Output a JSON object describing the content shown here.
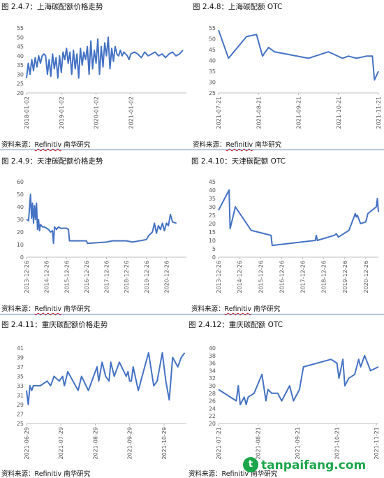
{
  "captions": [
    "图 2.4.7：上海碳配额价格走势",
    "图 2.4.8：上海碳配额 OTC",
    "图 2.4.9：天津碳配额价格走势",
    "图 2.4.10：天津碳配额 OTC",
    "图 2.4.11：重庆碳配额价格走势",
    "图 2.4.12：重庆碳配额 OTC"
  ],
  "source": {
    "prefix": "资料来源：",
    "vendor": "Refinitiv",
    "suffix": "南华研究"
  },
  "watermark": "tanpaifang.com",
  "colors": {
    "line": "#4472c4",
    "rule": "#5b7fb5"
  },
  "chart_data": [
    {
      "type": "line",
      "yticks": [
        20,
        25,
        30,
        35,
        40,
        45,
        50,
        55
      ],
      "ylim": [
        20,
        55
      ],
      "xticks": [
        "2018-01-02",
        "2019-01-02",
        "2020-01-02",
        "2021-01-02"
      ],
      "xlim": [
        0,
        4.6
      ],
      "tickx": [
        0,
        1,
        2,
        3
      ],
      "x": [
        0,
        0.05,
        0.1,
        0.15,
        0.2,
        0.25,
        0.3,
        0.35,
        0.4,
        0.45,
        0.5,
        0.55,
        0.6,
        0.65,
        0.7,
        0.75,
        0.8,
        0.85,
        0.9,
        0.95,
        1.0,
        1.05,
        1.1,
        1.15,
        1.2,
        1.25,
        1.3,
        1.35,
        1.4,
        1.45,
        1.5,
        1.55,
        1.6,
        1.65,
        1.7,
        1.75,
        1.8,
        1.85,
        1.9,
        1.95,
        2.0,
        2.05,
        2.1,
        2.15,
        2.2,
        2.25,
        2.3,
        2.35,
        2.4,
        2.45,
        2.5,
        2.55,
        2.6,
        2.65,
        2.7,
        2.75,
        2.8,
        2.85,
        2.9,
        2.95,
        3.0,
        3.1,
        3.2,
        3.3,
        3.4,
        3.5,
        3.6,
        3.7,
        3.8,
        3.9,
        4.0,
        4.1,
        4.2,
        4.3,
        4.4,
        4.5
      ],
      "values": [
        28,
        36,
        30,
        38,
        32,
        39,
        34,
        40,
        36,
        40,
        41,
        40,
        30,
        38,
        29,
        41,
        33,
        39,
        28,
        40,
        31,
        42,
        38,
        44,
        36,
        42,
        30,
        43,
        33,
        41,
        28,
        44,
        35,
        42,
        38,
        45,
        30,
        48,
        33,
        43,
        36,
        49,
        30,
        45,
        34,
        47,
        40,
        50,
        33,
        44,
        37,
        45,
        41,
        40,
        43,
        40,
        42,
        41,
        40,
        38,
        41,
        42,
        41,
        39,
        42,
        40,
        41,
        42,
        40,
        41,
        39,
        41,
        42,
        40,
        41,
        43
      ]
    },
    {
      "type": "line",
      "yticks": [
        25,
        30,
        35,
        40,
        45,
        50,
        55
      ],
      "ylim": [
        25,
        55
      ],
      "xticks": [
        "2021-07-21",
        "2021-08-21",
        "2021-09-21",
        "2021-10-21",
        "2021-11-21"
      ],
      "xlim": [
        0,
        4.0
      ],
      "tickx": [
        0,
        1,
        2,
        3,
        4
      ],
      "x": [
        0,
        0.25,
        0.7,
        0.95,
        1.1,
        1.25,
        1.4,
        2.25,
        2.75,
        3.1,
        3.25,
        3.45,
        3.7,
        3.85,
        3.9,
        4.0
      ],
      "values": [
        54,
        41,
        51,
        52,
        42,
        46,
        44,
        41,
        44,
        41,
        42,
        41,
        42,
        42,
        31,
        35
      ]
    },
    {
      "type": "line",
      "yticks": [
        0,
        10,
        20,
        30,
        40,
        50,
        60
      ],
      "ylim": [
        0,
        60
      ],
      "xticks": [
        "2013-12-26",
        "2014-12-26",
        "2015-12-26",
        "2016-12-26",
        "2017-12-26",
        "2018-12-26",
        "2019-12-26",
        "2020-12-26"
      ],
      "xlim": [
        0,
        8.0
      ],
      "tickx": [
        0,
        1,
        2,
        3,
        4,
        5,
        6,
        7
      ],
      "x": [
        0,
        0.1,
        0.2,
        0.25,
        0.3,
        0.35,
        0.4,
        0.45,
        0.5,
        0.55,
        0.6,
        0.65,
        0.7,
        0.8,
        0.9,
        1.0,
        1.1,
        1.2,
        1.3,
        1.35,
        1.4,
        1.5,
        1.6,
        1.7,
        2.0,
        2.1,
        2.15,
        3.0,
        3.05,
        4.0,
        4.3,
        5.0,
        5.3,
        6.0,
        6.1,
        6.3,
        6.4,
        6.5,
        6.6,
        6.7,
        6.8,
        6.9,
        7.0,
        7.1,
        7.2,
        7.3,
        7.5
      ],
      "values": [
        30,
        29,
        50,
        31,
        43,
        27,
        41,
        30,
        43,
        22,
        30,
        21,
        26,
        24,
        24,
        23,
        22,
        20,
        21,
        11,
        24,
        22,
        24,
        23,
        23,
        22,
        13,
        13,
        11,
        12,
        13,
        13,
        12,
        14,
        17,
        20,
        27,
        19,
        25,
        22,
        27,
        21,
        27,
        25,
        34,
        28,
        27
      ]
    },
    {
      "type": "line",
      "yticks": [
        0,
        5,
        10,
        15,
        20,
        25,
        30,
        35,
        40,
        45
      ],
      "ylim": [
        0,
        45
      ],
      "xticks": [
        "2013-12-26",
        "2014-12-26",
        "2015-12-26",
        "2016-12-26",
        "2017-12-26",
        "2018-12-26",
        "2019-12-26",
        "2020-12-26"
      ],
      "xlim": [
        0,
        7.6
      ],
      "tickx": [
        0,
        1,
        2,
        3,
        4,
        5,
        6,
        7
      ],
      "x": [
        0,
        0.5,
        0.55,
        0.8,
        1.55,
        2.5,
        2.55,
        4.6,
        4.65,
        4.7,
        5.5,
        5.6,
        5.7,
        6.2,
        6.5,
        6.55,
        6.6,
        6.75,
        7.0,
        7.1,
        7.5,
        7.55,
        7.6
      ],
      "values": [
        28,
        40,
        17,
        30,
        16,
        13,
        7,
        10,
        13,
        10,
        13,
        14,
        12,
        16,
        26,
        24,
        25,
        20,
        21,
        26,
        30,
        35,
        27
      ]
    },
    {
      "type": "line",
      "yticks": [
        25,
        27,
        29,
        31,
        33,
        35,
        37,
        39,
        41
      ],
      "ylim": [
        25,
        41
      ],
      "xticks": [
        "2021-06-29",
        "2021-07-29",
        "2021-08-29",
        "2021-09-29",
        "2021-10-29"
      ],
      "xlim": [
        0,
        4.65
      ],
      "tickx": [
        0,
        1,
        2,
        3,
        4
      ],
      "x": [
        0,
        0.05,
        0.1,
        0.15,
        0.2,
        0.4,
        0.6,
        0.7,
        0.8,
        0.95,
        1.05,
        1.1,
        1.2,
        1.5,
        1.6,
        1.8,
        2.05,
        2.1,
        2.2,
        2.3,
        2.4,
        2.45,
        2.55,
        2.7,
        2.9,
        2.95,
        3.0,
        3.05,
        3.1,
        3.25,
        3.4,
        3.55,
        3.7,
        3.8,
        3.95,
        4.05,
        4.15,
        4.25,
        4.4,
        4.5,
        4.6
      ],
      "values": [
        32,
        29,
        33,
        32,
        33,
        33,
        34,
        33,
        35,
        34,
        35,
        33,
        36,
        32,
        35,
        32,
        37,
        34,
        38,
        35,
        34,
        38,
        35,
        38,
        35,
        36,
        34,
        34,
        37,
        32,
        36,
        40,
        33,
        34,
        40,
        34,
        30,
        39,
        37,
        39,
        40
      ]
    },
    {
      "type": "line",
      "yticks": [
        20,
        22,
        24,
        26,
        28,
        30,
        32,
        34,
        36,
        38,
        40
      ],
      "ylim": [
        20,
        40
      ],
      "xticks": [
        "2021-07-21",
        "2021-08-21",
        "2021-09-21",
        "2021-10-21",
        "2021-11-21"
      ],
      "xlim": [
        0,
        4.05
      ],
      "tickx": [
        0,
        1,
        2,
        3,
        4
      ],
      "x": [
        0,
        0.45,
        0.5,
        0.55,
        0.65,
        0.7,
        0.75,
        0.9,
        1.1,
        1.2,
        1.25,
        1.35,
        1.5,
        1.6,
        1.8,
        1.9,
        2.05,
        2.15,
        2.85,
        3.0,
        3.05,
        3.15,
        3.2,
        3.3,
        3.45,
        3.55,
        3.6,
        3.7,
        3.85,
        4.05
      ],
      "values": [
        29,
        26,
        30,
        25,
        27,
        25,
        27,
        28,
        33,
        26,
        29,
        28,
        28,
        26,
        30,
        26,
        29,
        35,
        37,
        36,
        32,
        37,
        30,
        32,
        33,
        37,
        35,
        38,
        34,
        35
      ]
    }
  ]
}
